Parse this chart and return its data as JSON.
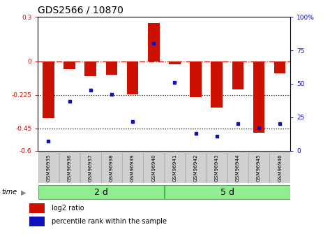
{
  "title": "GDS2566 / 10870",
  "samples": [
    "GSM96935",
    "GSM96936",
    "GSM96937",
    "GSM96938",
    "GSM96939",
    "GSM96940",
    "GSM96941",
    "GSM96942",
    "GSM96943",
    "GSM96944",
    "GSM96945",
    "GSM96946"
  ],
  "log2_ratio": [
    -0.38,
    -0.05,
    -0.1,
    -0.09,
    -0.22,
    0.26,
    -0.02,
    -0.24,
    -0.31,
    -0.19,
    -0.48,
    -0.08
  ],
  "percentile_rank": [
    7,
    37,
    45,
    42,
    22,
    80,
    51,
    13,
    11,
    20,
    17,
    20
  ],
  "group1_label": "2 d",
  "group2_label": "5 d",
  "group1_count": 6,
  "group2_count": 6,
  "ylim_left": [
    -0.6,
    0.3
  ],
  "ylim_right": [
    0,
    100
  ],
  "bar_color": "#CC1100",
  "dot_color": "#1111BB",
  "group_color": "#90EE90",
  "group_edge_color": "#44BB44",
  "sample_box_color": "#D0D0D0",
  "sample_box_edge": "#AAAAAA",
  "time_label": "time",
  "legend1": "log2 ratio",
  "legend2": "percentile rank within the sample",
  "title_fontsize": 10,
  "tick_fontsize": 6.5,
  "sample_fontsize": 5.2,
  "group_label_fontsize": 9,
  "legend_fontsize": 7
}
